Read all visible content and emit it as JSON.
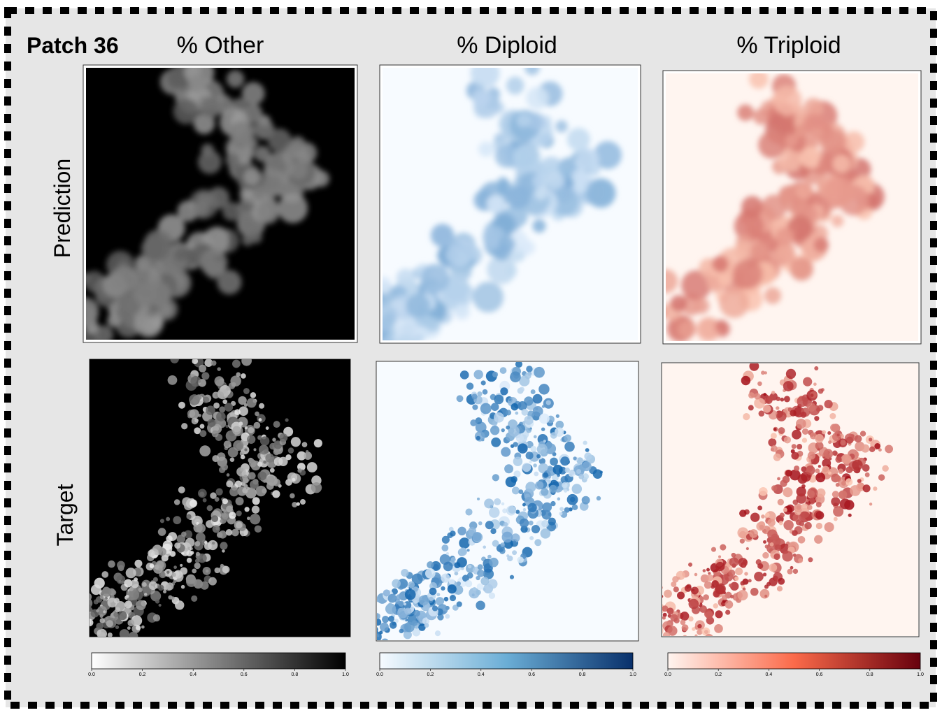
{
  "title": "Patch 36",
  "columns": [
    "% Other",
    "% Diploid",
    "% Triploid"
  ],
  "rows": [
    "Prediction",
    "Target"
  ],
  "colorbar_ticks": [
    "0.0",
    "0.2",
    "0.4",
    "0.6",
    "0.8",
    "1.0"
  ]
}
